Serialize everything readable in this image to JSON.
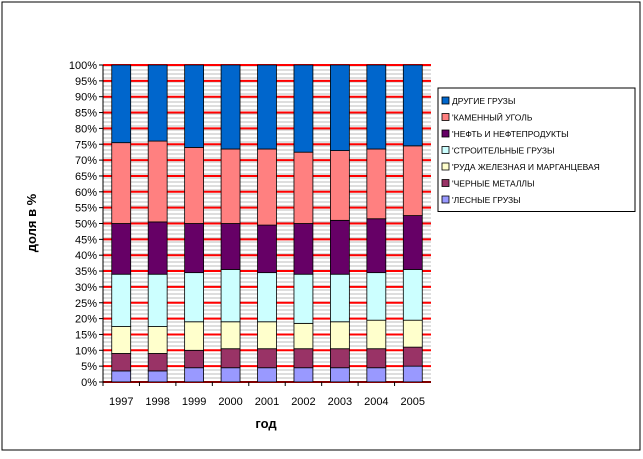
{
  "chart_data": {
    "type": "bar",
    "stacked": true,
    "normalized_percent": true,
    "title": "",
    "xlabel": "год",
    "ylabel": "доля в %",
    "ylim": [
      0,
      100
    ],
    "y_ticks": [
      "0%",
      "5%",
      "10%",
      "15%",
      "20%",
      "25%",
      "30%",
      "35%",
      "40%",
      "45%",
      "50%",
      "55%",
      "60%",
      "65%",
      "70%",
      "75%",
      "80%",
      "85%",
      "90%",
      "95%",
      "100%"
    ],
    "grid": true,
    "legend_position": "right",
    "categories": [
      "1997",
      "1998",
      "1999",
      "2000",
      "2001",
      "2002",
      "2003",
      "2004",
      "2005"
    ],
    "series": [
      {
        "name": "'ЛЕСНЫЕ ГРУЗЫ",
        "color": "#9999FF",
        "values": [
          3.5,
          3.5,
          4.5,
          4.5,
          4.5,
          4.5,
          4.5,
          4.5,
          5
        ]
      },
      {
        "name": "'ЧЕРНЫЕ МЕТАЛЛЫ",
        "color": "#993366",
        "values": [
          5.5,
          5.5,
          5.5,
          6,
          6,
          6,
          6,
          6,
          6
        ]
      },
      {
        "name": "'РУДА ЖЕЛЕЗНАЯ И МАРГАНЦЕВАЯ",
        "color": "#FFFFCC",
        "values": [
          8.5,
          8.5,
          9,
          8.5,
          8.5,
          8,
          8.5,
          9,
          8.5
        ]
      },
      {
        "name": "'СТРОИТЕЛЬНЫЕ ГРУЗЫ",
        "color": "#CCFFFF",
        "values": [
          16.5,
          16.5,
          15.5,
          16.5,
          15.5,
          15.5,
          15,
          15,
          16
        ]
      },
      {
        "name": "'НЕФТЬ И НЕФТЕПРОДУКТЫ",
        "color": "#660066",
        "values": [
          16,
          16.5,
          15.5,
          14.5,
          15,
          16,
          17,
          17,
          17
        ]
      },
      {
        "name": "'КАМЕННЫЙ УГОЛЬ",
        "color": "#FF8080",
        "values": [
          25.5,
          25.5,
          24,
          23.5,
          24,
          22.5,
          22,
          22,
          22
        ]
      },
      {
        "name": "ДРУГИЕ ГРУЗЫ",
        "color": "#0066CC",
        "values": [
          24.5,
          24,
          26,
          26.5,
          26.5,
          27.5,
          27,
          26.5,
          25.5
        ]
      }
    ]
  }
}
